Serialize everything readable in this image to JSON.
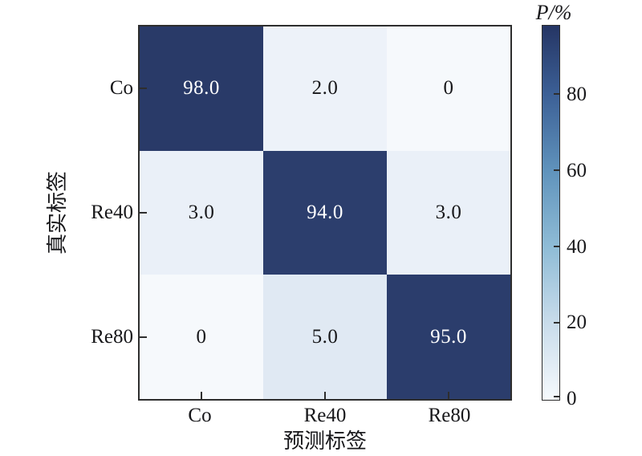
{
  "figure": {
    "background": "#ffffff",
    "axis_color": "#2e2e2e"
  },
  "chart_data": {
    "type": "heatmap",
    "title": "",
    "xlabel": "预测标签",
    "ylabel": "真实标签",
    "categories": [
      "Co",
      "Re40",
      "Re80"
    ],
    "rows": [
      "Co",
      "Re40",
      "Re80"
    ],
    "matrix": [
      [
        98.0,
        2.0,
        0
      ],
      [
        3.0,
        94.0,
        3.0
      ],
      [
        0,
        5.0,
        95.0
      ]
    ],
    "cells": [
      {
        "row": "Co",
        "col": "Co",
        "value": 98.0,
        "label": "98.0",
        "bg": "#293a68",
        "fg": "#ffffff"
      },
      {
        "row": "Co",
        "col": "Re40",
        "value": 2.0,
        "label": "2.0",
        "bg": "#edf2f9",
        "fg": "#17171a"
      },
      {
        "row": "Co",
        "col": "Re80",
        "value": 0,
        "label": "0",
        "bg": "#f6f9fc",
        "fg": "#17171a"
      },
      {
        "row": "Re40",
        "col": "Co",
        "value": 3.0,
        "label": "3.0",
        "bg": "#eaf0f8",
        "fg": "#17171a"
      },
      {
        "row": "Re40",
        "col": "Re40",
        "value": 94.0,
        "label": "94.0",
        "bg": "#2c3e6d",
        "fg": "#ffffff"
      },
      {
        "row": "Re40",
        "col": "Re80",
        "value": 3.0,
        "label": "3.0",
        "bg": "#eaf0f8",
        "fg": "#17171a"
      },
      {
        "row": "Re80",
        "col": "Co",
        "value": 0,
        "label": "0",
        "bg": "#f6f9fc",
        "fg": "#17171a"
      },
      {
        "row": "Re80",
        "col": "Re40",
        "value": 5.0,
        "label": "5.0",
        "bg": "#e0e9f3",
        "fg": "#17171a"
      },
      {
        "row": "Re80",
        "col": "Re80",
        "value": 95.0,
        "label": "95.0",
        "bg": "#2b3d6c",
        "fg": "#ffffff"
      }
    ],
    "colorbar": {
      "title": "P/%",
      "vmin": 0,
      "vmax": 98,
      "ticks": [
        "80",
        "60",
        "40",
        "20",
        "0"
      ],
      "gradient_stops": [
        "#253564",
        "#3c6096",
        "#6093bc",
        "#8fbcd6",
        "#c9dceb",
        "#f6fafd"
      ]
    },
    "grid": false,
    "legend_position": "none"
  }
}
